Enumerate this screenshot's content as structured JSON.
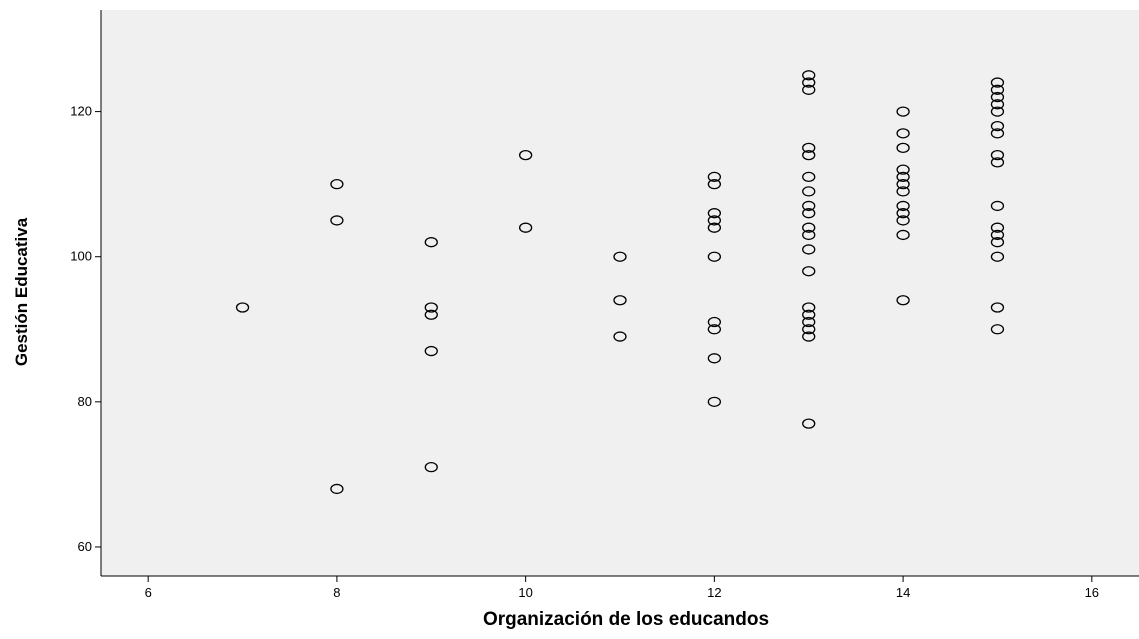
{
  "chart_data": {
    "type": "scatter",
    "title": "",
    "xlabel": "Organización de los educandos",
    "ylabel": "Gestión Educativa",
    "xlim": [
      5.5,
      16.5
    ],
    "ylim": [
      56,
      134
    ],
    "xticks": [
      6,
      8,
      10,
      12,
      14,
      16
    ],
    "yticks": [
      60,
      80,
      100,
      120
    ],
    "grid": false,
    "legend": "none",
    "marker": "open-circle",
    "colors": {
      "plot_background": "#f0f0f0",
      "marker_stroke": "#000000",
      "axis": "#000000"
    },
    "points": [
      [
        7,
        93
      ],
      [
        8,
        110
      ],
      [
        8,
        105
      ],
      [
        8,
        68
      ],
      [
        9,
        102
      ],
      [
        9,
        93
      ],
      [
        9,
        92
      ],
      [
        9,
        87
      ],
      [
        9,
        71
      ],
      [
        10,
        114
      ],
      [
        10,
        104
      ],
      [
        11,
        100
      ],
      [
        11,
        94
      ],
      [
        11,
        89
      ],
      [
        12,
        111
      ],
      [
        12,
        110
      ],
      [
        12,
        106
      ],
      [
        12,
        105
      ],
      [
        12,
        104
      ],
      [
        12,
        100
      ],
      [
        12,
        91
      ],
      [
        12,
        90
      ],
      [
        12,
        86
      ],
      [
        12,
        80
      ],
      [
        13,
        125
      ],
      [
        13,
        124
      ],
      [
        13,
        123
      ],
      [
        13,
        115
      ],
      [
        13,
        114
      ],
      [
        13,
        111
      ],
      [
        13,
        109
      ],
      [
        13,
        107
      ],
      [
        13,
        106
      ],
      [
        13,
        104
      ],
      [
        13,
        103
      ],
      [
        13,
        101
      ],
      [
        13,
        98
      ],
      [
        13,
        93
      ],
      [
        13,
        92
      ],
      [
        13,
        91
      ],
      [
        13,
        90
      ],
      [
        13,
        89
      ],
      [
        13,
        77
      ],
      [
        14,
        120
      ],
      [
        14,
        117
      ],
      [
        14,
        115
      ],
      [
        14,
        112
      ],
      [
        14,
        111
      ],
      [
        14,
        110
      ],
      [
        14,
        109
      ],
      [
        14,
        107
      ],
      [
        14,
        106
      ],
      [
        14,
        105
      ],
      [
        14,
        103
      ],
      [
        14,
        94
      ],
      [
        15,
        124
      ],
      [
        15,
        123
      ],
      [
        15,
        122
      ],
      [
        15,
        121
      ],
      [
        15,
        120
      ],
      [
        15,
        118
      ],
      [
        15,
        117
      ],
      [
        15,
        114
      ],
      [
        15,
        113
      ],
      [
        15,
        107
      ],
      [
        15,
        104
      ],
      [
        15,
        103
      ],
      [
        15,
        102
      ],
      [
        15,
        100
      ],
      [
        15,
        93
      ],
      [
        15,
        90
      ]
    ]
  }
}
